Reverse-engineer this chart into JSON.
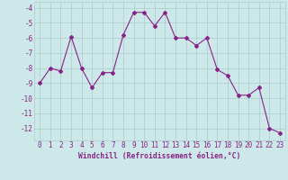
{
  "x": [
    0,
    1,
    2,
    3,
    4,
    5,
    6,
    7,
    8,
    9,
    10,
    11,
    12,
    13,
    14,
    15,
    16,
    17,
    18,
    19,
    20,
    21,
    22,
    23
  ],
  "y": [
    -9,
    -8,
    -8.2,
    -5.9,
    -8,
    -9.3,
    -8.3,
    -8.3,
    -5.8,
    -4.3,
    -4.3,
    -5.2,
    -4.3,
    -6.0,
    -6.0,
    -6.5,
    -6.0,
    -8.1,
    -8.5,
    -9.8,
    -9.8,
    -9.3,
    -12.0,
    -12.3
  ],
  "line_color": "#882288",
  "marker": "P",
  "marker_size": 2.5,
  "marker_color": "#882288",
  "bg_color": "#cce8e8",
  "grid_color": "#aacccc",
  "xlabel": "Windchill (Refroidissement éolien,°C)",
  "ylim": [
    -12.8,
    -3.6
  ],
  "xlim": [
    -0.5,
    23.5
  ],
  "yticks": [
    -4,
    -5,
    -6,
    -7,
    -8,
    -9,
    -10,
    -11,
    -12
  ],
  "xticks": [
    0,
    1,
    2,
    3,
    4,
    5,
    6,
    7,
    8,
    9,
    10,
    11,
    12,
    13,
    14,
    15,
    16,
    17,
    18,
    19,
    20,
    21,
    22,
    23
  ],
  "font_color": "#882288",
  "xlabel_fontsize": 5.8,
  "tick_fontsize": 5.5
}
